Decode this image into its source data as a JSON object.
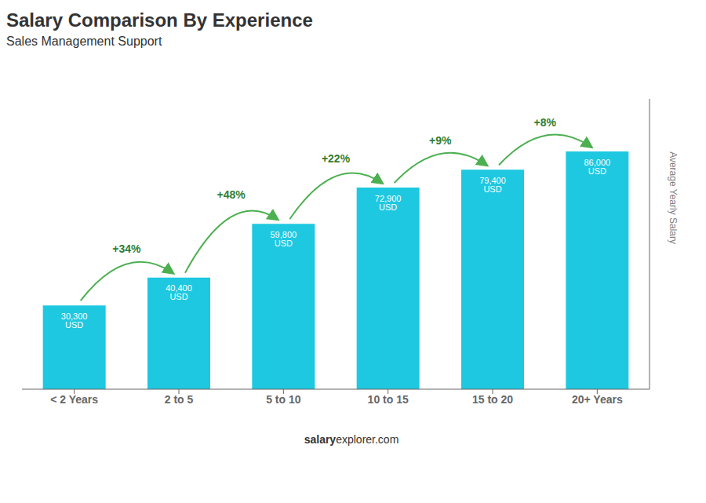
{
  "chart_data": {
    "type": "bar",
    "title": "Salary Comparison By Experience",
    "subtitle": "Sales Management Support",
    "categories": [
      "< 2 Years",
      "2 to 5",
      "5 to 10",
      "10 to 15",
      "15 to 20",
      "20+ Years"
    ],
    "values": [
      30300,
      40400,
      59800,
      72900,
      79400,
      86000
    ],
    "value_labels": [
      "30,300 USD",
      "40,400 USD",
      "59,800 USD",
      "72,900 USD",
      "79,400 USD",
      "86,000 USD"
    ],
    "data_labels": true,
    "annotations": [
      "+34%",
      "+48%",
      "+22%",
      "+9%",
      "+8%"
    ],
    "ylabel": "Average Yearly Salary",
    "footer": [
      "salary",
      "explorer.com"
    ],
    "color": "#1ec8e0",
    "ylim": [
      0,
      105000
    ],
    "tick_labels": "x",
    "grid": false
  }
}
